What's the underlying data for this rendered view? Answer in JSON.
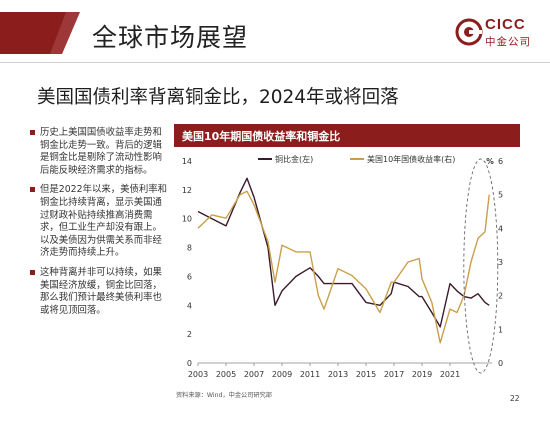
{
  "header": {
    "title": "全球市场展望"
  },
  "logo": {
    "brand": "CICC",
    "brand_cn": "中金公司"
  },
  "subtitle": "美国国债利率背离铜金比，2024年或将回落",
  "bullets": [
    "历史上美国国债收益率走势和铜金比走势一致。背后的逻辑是铜金比是剔除了流动性影响后能反映经济需求的指标。",
    "但是2022年以来，美债利率和铜金比持续背离，显示美国通过财政补贴持续推高消费需求，但工业生产却没有跟上。以及美债因为供需关系而非经济走势而持续上升。",
    "这种背离并非可以持续，如果美国经济放缓，铜金比回落，那么我们预计最终美债利率也或将见顶回落。"
  ],
  "chart_data": {
    "type": "line",
    "title": "美国10年期国债收益率和铜金比",
    "x": [
      2003,
      2004,
      2005,
      2006,
      2006.5,
      2007,
      2008,
      2008.5,
      2009,
      2010,
      2011,
      2011.6,
      2012,
      2013,
      2014,
      2015,
      2016,
      2016.8,
      2017,
      2018,
      2018.8,
      2019,
      2019.7,
      2020.3,
      2021,
      2021.5,
      2022,
      2022.5,
      2023,
      2023.5,
      2023.8
    ],
    "series": [
      {
        "name": "铜比金(左)",
        "axis": "left",
        "values": [
          10.5,
          10,
          9.5,
          11.8,
          12.8,
          11.5,
          8,
          4,
          5,
          6,
          6.6,
          6,
          5.5,
          5.5,
          5.5,
          4.2,
          4.0,
          4.8,
          5.6,
          5.3,
          4.6,
          4.6,
          3.5,
          2.5,
          5.5,
          5.0,
          4.6,
          4.5,
          4.8,
          4.2,
          4.0
        ]
      },
      {
        "name": "美国10年国债收益率(右)",
        "axis": "right",
        "values": [
          4.0,
          4.4,
          4.3,
          5.0,
          5.1,
          4.7,
          3.6,
          2.4,
          3.5,
          3.3,
          3.3,
          2.0,
          1.6,
          2.8,
          2.6,
          2.2,
          1.5,
          2.4,
          2.4,
          3.0,
          3.1,
          2.5,
          1.8,
          0.6,
          1.6,
          1.5,
          2.0,
          3.0,
          3.7,
          3.9,
          5.0
        ]
      }
    ],
    "x_ticks": [
      "2003",
      "2005",
      "2007",
      "2009",
      "2011",
      "2013",
      "2015",
      "2017",
      "2019",
      "2021"
    ],
    "y_left": {
      "range": [
        0,
        14
      ],
      "ticks": [
        0,
        2,
        4,
        6,
        8,
        10,
        12,
        14
      ]
    },
    "y_right": {
      "range": [
        0,
        6
      ],
      "ticks": [
        0,
        1,
        2,
        3,
        4,
        5,
        6
      ]
    },
    "right_unit": "%",
    "legend_placement": "top-center",
    "colors": {
      "copper_gold": "#3b1b2b",
      "treasury": "#c9a04a",
      "accent": "#8c1d1d"
    }
  },
  "source": "资料来源：Wind，中金公司研究部",
  "page_number": "22"
}
